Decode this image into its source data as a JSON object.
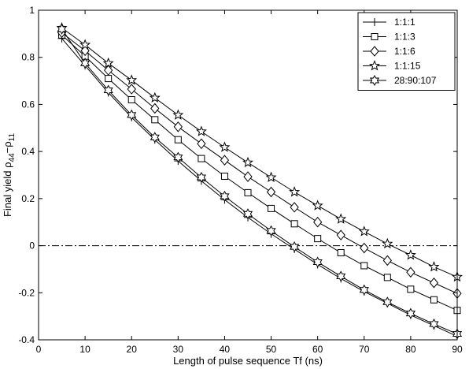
{
  "chart_data": {
    "type": "line",
    "xlabel": "Length of pulse sequence Tf (ns)",
    "ylabel": {
      "prefix": "Final yield ρ",
      "sub1": "44",
      "mid": "−ρ",
      "sub2": "11"
    },
    "xlim": [
      0,
      90
    ],
    "ylim": [
      -0.4,
      1
    ],
    "xticks": [
      0,
      10,
      20,
      30,
      40,
      50,
      60,
      70,
      80,
      90
    ],
    "yticks": [
      -0.4,
      -0.2,
      0,
      0.2,
      0.4,
      0.6,
      0.8,
      1
    ],
    "ytick_labels": [
      "-0.4",
      "-0.2",
      "0",
      "0.2",
      "0.4",
      "0.6",
      "0.8",
      "1"
    ],
    "grid": false,
    "legend_position": "top-right",
    "reference_line": {
      "y": 0,
      "style": "dash-dot"
    },
    "x": [
      5,
      10,
      15,
      20,
      25,
      30,
      35,
      40,
      45,
      50,
      55,
      60,
      65,
      70,
      75,
      80,
      85,
      90
    ],
    "series": [
      {
        "name": "1:1:1",
        "marker": "plus",
        "values": [
          0.88,
          0.765,
          0.65,
          0.545,
          0.45,
          0.36,
          0.275,
          0.195,
          0.12,
          0.05,
          -0.015,
          -0.08,
          -0.14,
          -0.195,
          -0.245,
          -0.295,
          -0.34,
          -0.385
        ]
      },
      {
        "name": "1:1:3",
        "marker": "square",
        "values": [
          0.895,
          0.805,
          0.71,
          0.62,
          0.535,
          0.45,
          0.37,
          0.295,
          0.225,
          0.158,
          0.093,
          0.03,
          -0.03,
          -0.085,
          -0.135,
          -0.185,
          -0.23,
          -0.275
        ]
      },
      {
        "name": "1:1:6",
        "marker": "diamond",
        "values": [
          0.905,
          0.828,
          0.745,
          0.665,
          0.583,
          0.505,
          0.433,
          0.363,
          0.293,
          0.228,
          0.163,
          0.1,
          0.045,
          -0.01,
          -0.063,
          -0.113,
          -0.158,
          -0.203
        ]
      },
      {
        "name": "1:1:15",
        "marker": "star5",
        "values": [
          0.925,
          0.853,
          0.775,
          0.703,
          0.628,
          0.555,
          0.485,
          0.418,
          0.353,
          0.29,
          0.228,
          0.17,
          0.113,
          0.06,
          0.008,
          -0.04,
          -0.09,
          -0.133
        ]
      },
      {
        "name": "28:90:107",
        "marker": "star6",
        "values": [
          0.92,
          0.775,
          0.66,
          0.555,
          0.46,
          0.375,
          0.29,
          0.21,
          0.135,
          0.063,
          -0.005,
          -0.07,
          -0.13,
          -0.188,
          -0.24,
          -0.288,
          -0.333,
          -0.375
        ]
      }
    ]
  }
}
